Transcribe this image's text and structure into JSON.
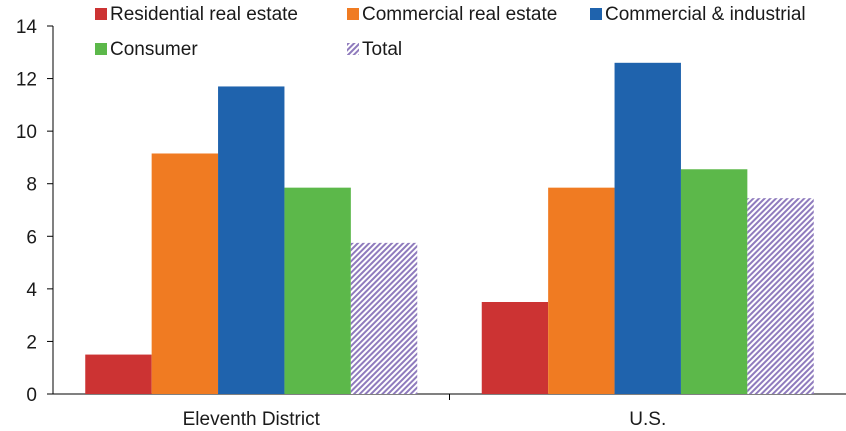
{
  "chart_data": {
    "type": "bar",
    "title": "",
    "xlabel": "",
    "ylabel": "",
    "ylim": [
      0,
      14
    ],
    "yticks": [
      0,
      2,
      4,
      6,
      8,
      10,
      12,
      14
    ],
    "grid": false,
    "legend_position": "top",
    "categories": [
      "Eleventh District",
      "U.S."
    ],
    "series": [
      {
        "name": "Residential real estate",
        "values": [
          1.5,
          3.5
        ],
        "color": "#cc3333",
        "pattern": "solid"
      },
      {
        "name": "Commercial real estate",
        "values": [
          9.15,
          7.85
        ],
        "color": "#f07b22",
        "pattern": "solid"
      },
      {
        "name": "Commercial & industrial",
        "values": [
          11.7,
          12.6
        ],
        "color": "#1f63ad",
        "pattern": "solid"
      },
      {
        "name": "Consumer",
        "values": [
          7.85,
          8.55
        ],
        "color": "#5cb84a",
        "pattern": "solid"
      },
      {
        "name": "Total",
        "values": [
          5.75,
          7.45
        ],
        "color": "#9b86c4",
        "pattern": "hatched"
      }
    ]
  }
}
